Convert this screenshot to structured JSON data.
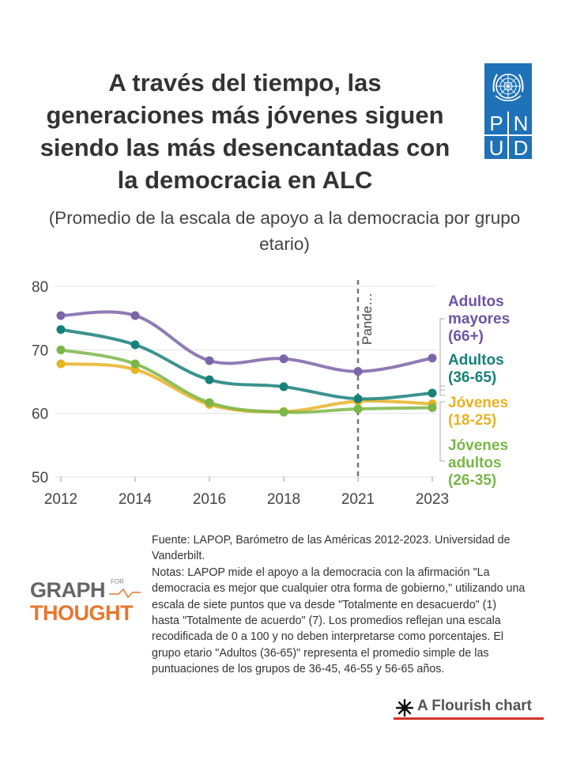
{
  "header": {
    "title": "A través del tiempo, las generaciones más jóvenes siguen siendo las más desencantadas con la democracia en ALC",
    "subtitle": "(Promedio de la escala de apoyo a la democracia por grupo etario)"
  },
  "logo": {
    "letters": [
      "P",
      "N",
      "U",
      "D"
    ],
    "color": "#1f72b8",
    "icon": "un-emblem-icon"
  },
  "chart_data": {
    "type": "line",
    "title": "A través del tiempo, las generaciones más jóvenes siguen siendo las más desencantadas con la democracia en ALC",
    "subtitle": "(Promedio de la escala de apoyo a la democracia por grupo etario)",
    "categories": [
      "2012",
      "2014",
      "2016",
      "2018",
      "2021",
      "2023"
    ],
    "ylim": [
      50,
      80
    ],
    "yticks": [
      50,
      60,
      70,
      80
    ],
    "grid": true,
    "xlabel": "",
    "ylabel": "",
    "annotation": {
      "label": "Pande…",
      "category": "2021"
    },
    "series": [
      {
        "name": "Adultos mayores (66+)",
        "color": "#7b64a8",
        "values": [
          75.4,
          75.4,
          68.3,
          68.6,
          66.6,
          68.7
        ]
      },
      {
        "name": "Adultos (36-65)",
        "color": "#17807a",
        "values": [
          73.2,
          70.8,
          65.3,
          64.2,
          62.3,
          63.2
        ]
      },
      {
        "name": "Jóvenes (18-25)",
        "color": "#e6b325",
        "values": [
          67.8,
          66.9,
          61.4,
          60.3,
          61.9,
          61.5
        ]
      },
      {
        "name": "Jóvenes adultos (26-35)",
        "color": "#7ab648",
        "values": [
          70.0,
          67.8,
          61.7,
          60.2,
          60.7,
          60.9
        ]
      }
    ],
    "labels": [
      {
        "lines": [
          "Adultos",
          "mayores",
          "(66+)"
        ],
        "color": "#6d55a3"
      },
      {
        "lines": [
          "Adultos",
          "(36-65)"
        ],
        "color": "#17807a"
      },
      {
        "lines": [
          "Jóvenes",
          "(18-25)"
        ],
        "color": "#e6b325"
      },
      {
        "lines": [
          "Jóvenes",
          "adultos",
          "(26-35)"
        ],
        "color": "#7ab648"
      }
    ]
  },
  "footer": {
    "source": "Fuente: LAPOP, Barómetro de las Américas 2012-2023. Universidad de Vanderbilt.",
    "notes": "Notas: LAPOP mide el apoyo a la democracia con la afirmación \"La democracia es mejor que cualquier otra forma de gobierno,\" utilizando una escala de siete puntos que va desde \"Totalmente en desacuerdo\" (1) hasta \"Totalmente de acuerdo\" (7). Los promedios reflejan una escala recodificada de 0 a 100 y no deben interpretarse como porcentajes. El grupo etario \"Adultos (36-65)\" representa el promedio simple de las puntuaciones de los grupos de 36-45, 46-55 y 56-65 años.",
    "brand_line1": "GRAPH",
    "brand_line2": "THOUGHT",
    "brand_small": "FOR",
    "flourish": "A Flourish chart",
    "brand_color": "#e8772e",
    "flourish_color": "#d1332e"
  }
}
